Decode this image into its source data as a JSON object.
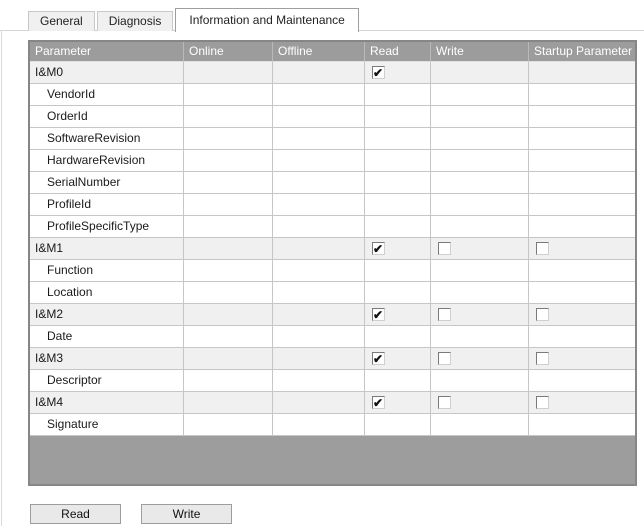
{
  "tabs": [
    {
      "label": "General",
      "active": false
    },
    {
      "label": "Diagnosis",
      "active": false
    },
    {
      "label": "Information and Maintenance",
      "active": true
    }
  ],
  "table": {
    "columns": [
      "Parameter",
      "Online",
      "Offline",
      "Read",
      "Write",
      "Startup Parameter"
    ],
    "rows": [
      {
        "parameter": "I&M0",
        "group": true,
        "online": "",
        "offline": "",
        "read": "checked",
        "write": "none",
        "startup": "none"
      },
      {
        "parameter": "VendorId",
        "group": false,
        "online": "",
        "offline": "",
        "read": "none",
        "write": "none",
        "startup": "none"
      },
      {
        "parameter": "OrderId",
        "group": false,
        "online": "",
        "offline": "",
        "read": "none",
        "write": "none",
        "startup": "none"
      },
      {
        "parameter": "SoftwareRevision",
        "group": false,
        "online": "",
        "offline": "",
        "read": "none",
        "write": "none",
        "startup": "none"
      },
      {
        "parameter": "HardwareRevision",
        "group": false,
        "online": "",
        "offline": "",
        "read": "none",
        "write": "none",
        "startup": "none"
      },
      {
        "parameter": "SerialNumber",
        "group": false,
        "online": "",
        "offline": "",
        "read": "none",
        "write": "none",
        "startup": "none"
      },
      {
        "parameter": "ProfileId",
        "group": false,
        "online": "",
        "offline": "",
        "read": "none",
        "write": "none",
        "startup": "none"
      },
      {
        "parameter": "ProfileSpecificType",
        "group": false,
        "online": "",
        "offline": "",
        "read": "none",
        "write": "none",
        "startup": "none"
      },
      {
        "parameter": "I&M1",
        "group": true,
        "online": "",
        "offline": "",
        "read": "checked",
        "write": "unchecked",
        "startup": "unchecked"
      },
      {
        "parameter": "Function",
        "group": false,
        "online": "",
        "offline": "",
        "read": "none",
        "write": "none",
        "startup": "none"
      },
      {
        "parameter": "Location",
        "group": false,
        "online": "",
        "offline": "",
        "read": "none",
        "write": "none",
        "startup": "none"
      },
      {
        "parameter": "I&M2",
        "group": true,
        "online": "",
        "offline": "",
        "read": "checked",
        "write": "unchecked",
        "startup": "unchecked"
      },
      {
        "parameter": "Date",
        "group": false,
        "online": "",
        "offline": "",
        "read": "none",
        "write": "none",
        "startup": "none"
      },
      {
        "parameter": "I&M3",
        "group": true,
        "online": "",
        "offline": "",
        "read": "checked",
        "write": "unchecked",
        "startup": "unchecked"
      },
      {
        "parameter": "Descriptor",
        "group": false,
        "online": "",
        "offline": "",
        "read": "none",
        "write": "none",
        "startup": "none"
      },
      {
        "parameter": "I&M4",
        "group": true,
        "online": "",
        "offline": "",
        "read": "checked",
        "write": "unchecked",
        "startup": "unchecked"
      },
      {
        "parameter": "Signature",
        "group": false,
        "online": "",
        "offline": "",
        "read": "none",
        "write": "none",
        "startup": "none"
      }
    ]
  },
  "buttons": {
    "read_label": "Read",
    "write_label": "Write"
  },
  "colors": {
    "header_bg": "#9c9c9c",
    "header_text": "#ffffff",
    "group_row_bg": "#f0f0f0",
    "row_bg": "#ffffff",
    "grid_line": "#c6c6c6",
    "table_border": "#868686",
    "filler_bg": "#9d9d9d"
  }
}
